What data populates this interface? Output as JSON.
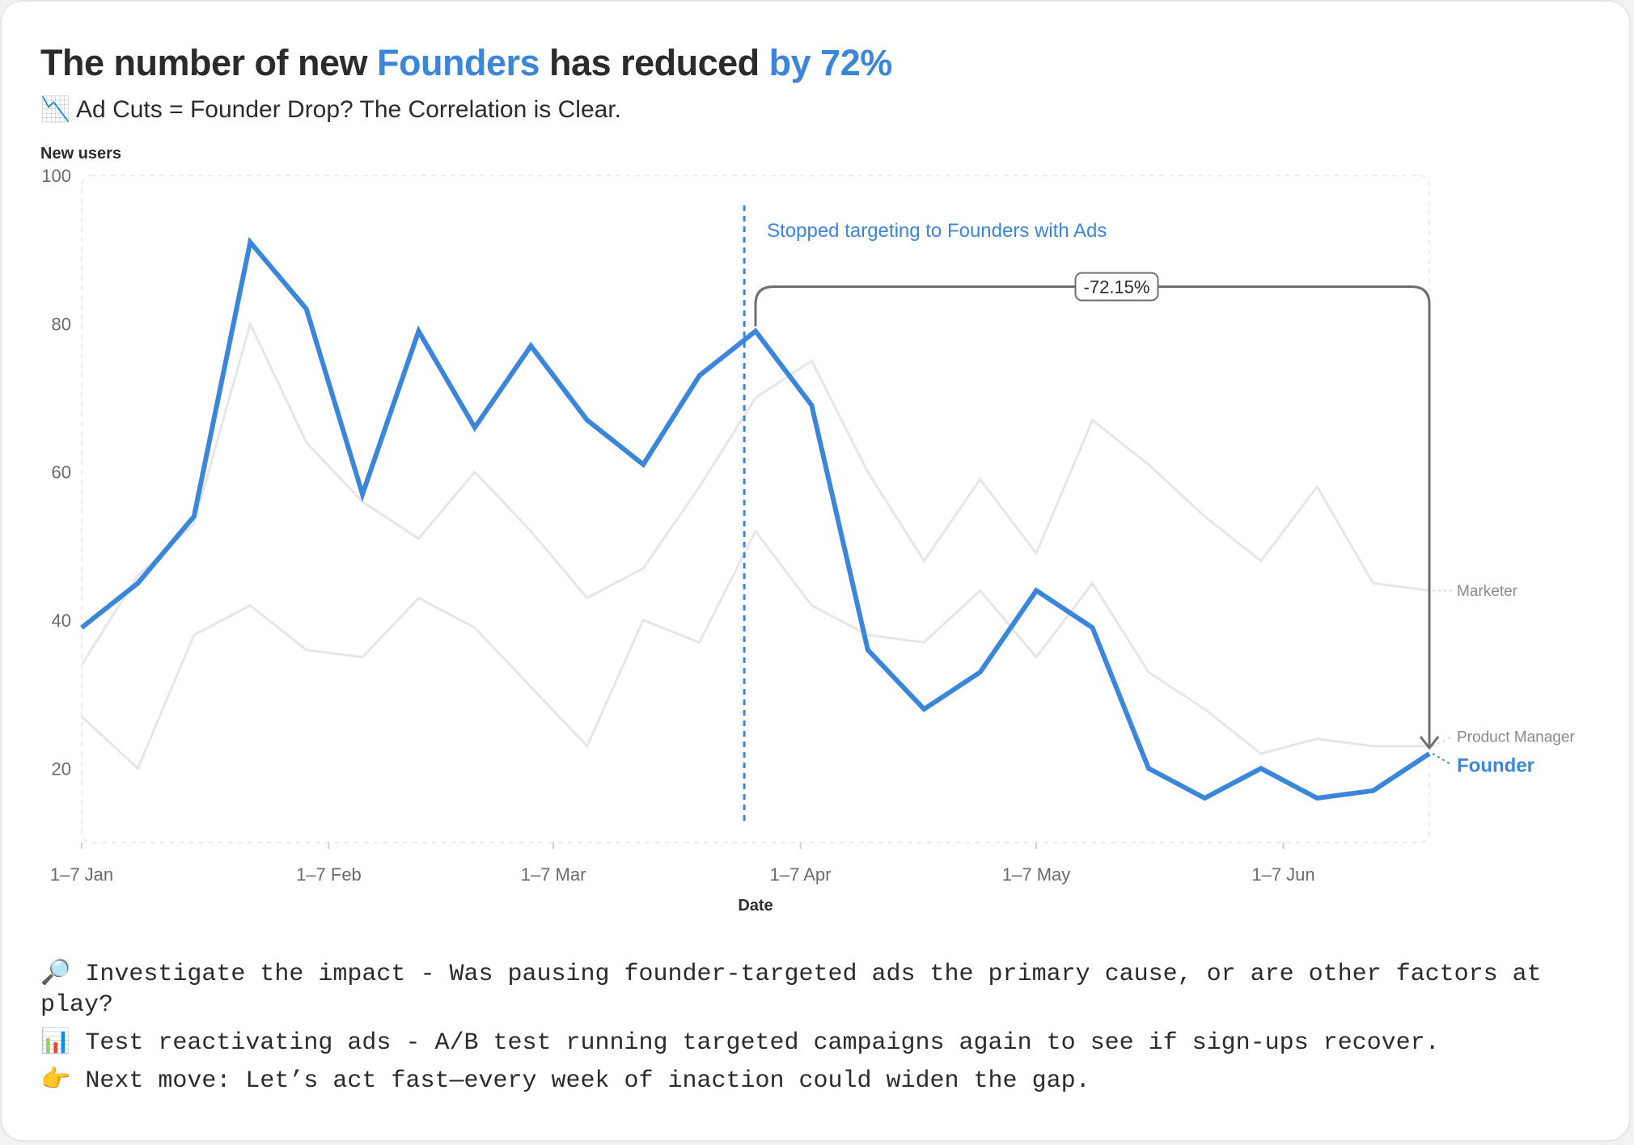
{
  "header": {
    "title_part1": "The number of new ",
    "title_highlight1": "Founders",
    "title_part2": " has reduced ",
    "title_highlight2": "by 72%",
    "subtitle_icon": "📉",
    "subtitle_icon_name": "chart-decreasing-icon",
    "subtitle": "Ad Cuts = Founder Drop? The Correlation is Clear."
  },
  "chart_data": {
    "type": "line",
    "title": "The number of new Founders has reduced by 72%",
    "xlabel": "Date",
    "ylabel": "New users",
    "ylim": [
      10,
      100
    ],
    "yticks": [
      100,
      80,
      60,
      40,
      20
    ],
    "x_tick_labels": [
      {
        "label": "1–7 Jan",
        "index": 0
      },
      {
        "label": "1–7 Feb",
        "index": 4.4
      },
      {
        "label": "1–7 Mar",
        "index": 8.4
      },
      {
        "label": "1–7 Apr",
        "index": 12.8
      },
      {
        "label": "1–7 May",
        "index": 17.0
      },
      {
        "label": "1–7 Jun",
        "index": 21.4
      }
    ],
    "x_count": 25,
    "series": [
      {
        "name": "Founder",
        "color": "#3a86db",
        "emphasis": true,
        "values": [
          39,
          45,
          54,
          91,
          82,
          57,
          79,
          66,
          77,
          67,
          61,
          73,
          79,
          69,
          36,
          28,
          33,
          44,
          39,
          20,
          16,
          20,
          16,
          17,
          22
        ]
      },
      {
        "name": "Marketer",
        "color": "#e6e6e6",
        "emphasis": false,
        "values": [
          34,
          46,
          53,
          80,
          64,
          56,
          51,
          60,
          52,
          43,
          47,
          58,
          70,
          75,
          60,
          48,
          59,
          49,
          67,
          61,
          54,
          48,
          58,
          45,
          44
        ]
      },
      {
        "name": "Product Manager",
        "color": "#e6e6e6",
        "emphasis": false,
        "values": [
          27,
          20,
          38,
          42,
          36,
          35,
          43,
          39,
          31,
          23,
          40,
          37,
          52,
          42,
          38,
          37,
          44,
          35,
          45,
          33,
          28,
          22,
          24,
          23,
          23
        ]
      }
    ],
    "annotations": {
      "event_index": 11.8,
      "event_label": "Stopped targeting to Founders with Ads",
      "change_label": "-72.15%",
      "change_from_index": 12,
      "change_to_index": 24,
      "change_y": 85
    }
  },
  "notes": [
    {
      "icon": "🔎",
      "icon_name": "magnifier-icon",
      "text": "Investigate the impact - Was pausing founder-targeted ads the primary cause, or are other factors at play?"
    },
    {
      "icon": "📊",
      "icon_name": "bar-chart-icon",
      "text": "Test reactivating ads - A/B test running targeted campaigns again to see if sign-ups recover."
    },
    {
      "icon": "👉",
      "icon_name": "pointing-right-icon",
      "text": "Next move: Let’s act fast—every week of inaction could widen the gap."
    }
  ]
}
